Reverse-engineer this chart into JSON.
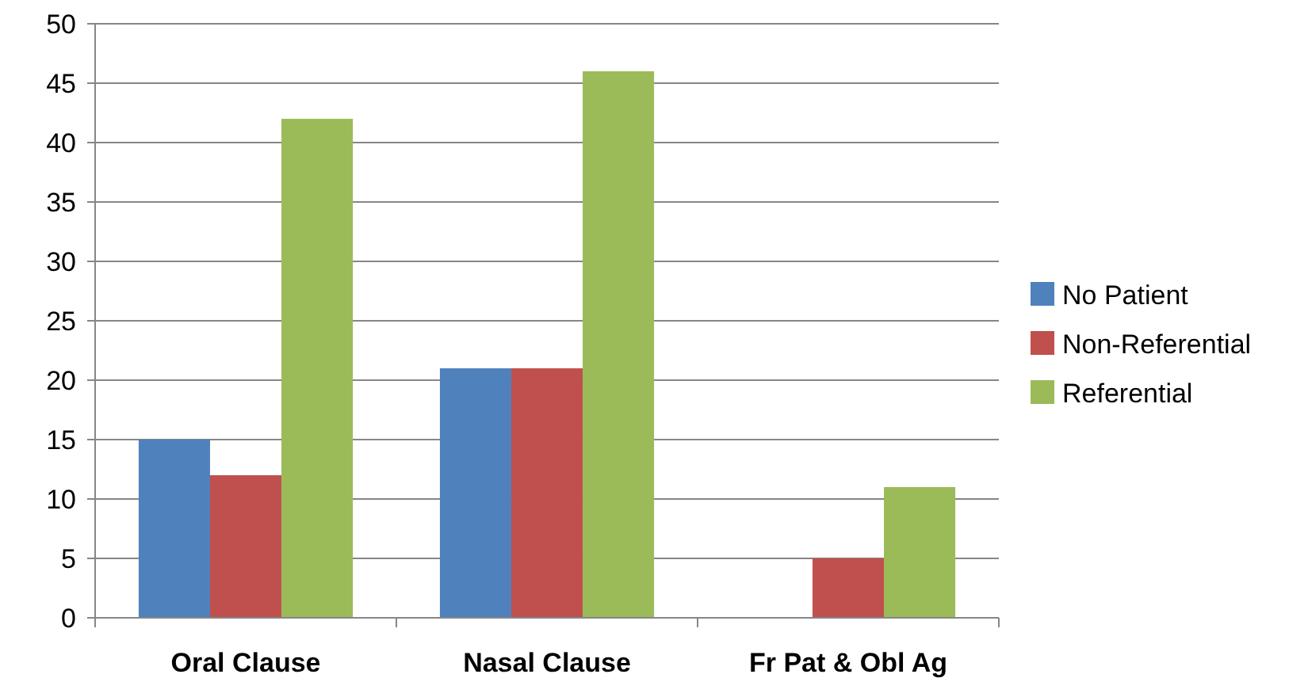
{
  "chart_data": {
    "type": "bar",
    "categories": [
      "Oral Clause",
      "Nasal Clause",
      "Fr Pat & Obl Ag"
    ],
    "series": [
      {
        "name": "No Patient",
        "color": "#4f81bd",
        "values": [
          15,
          21,
          0
        ]
      },
      {
        "name": "Non-Referential",
        "color": "#c0504d",
        "values": [
          12,
          21,
          5
        ]
      },
      {
        "name": "Referential",
        "color": "#9bbb59",
        "values": [
          42,
          46,
          11
        ]
      }
    ],
    "ylim": [
      0,
      50
    ],
    "yticks": [
      0,
      5,
      10,
      15,
      20,
      25,
      30,
      35,
      40,
      45,
      50
    ],
    "grid": "y",
    "legend": "right"
  }
}
